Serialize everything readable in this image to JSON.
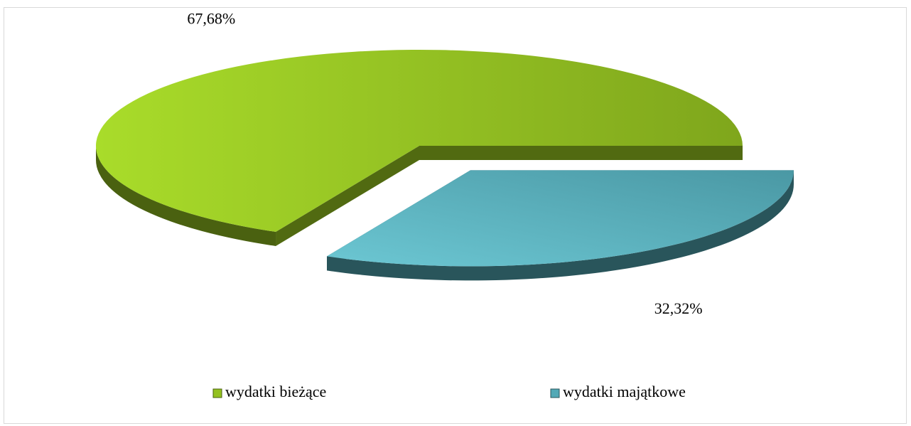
{
  "chart_data": {
    "type": "pie",
    "categories": [
      "wydatki bieżące",
      "wydatki majątkowe"
    ],
    "values": [
      67.68,
      32.32
    ],
    "value_labels": [
      "67,68%",
      "32,32%"
    ],
    "colors": [
      "#93c11f",
      "#52a9b6"
    ],
    "legend": "bottom"
  }
}
